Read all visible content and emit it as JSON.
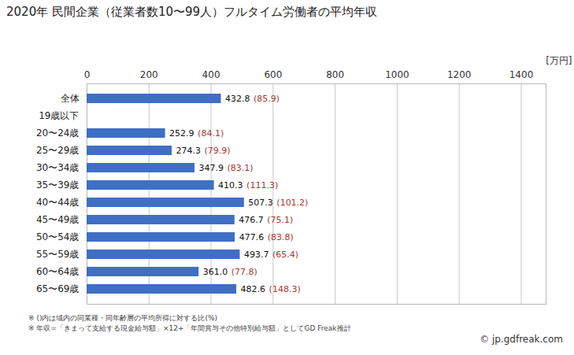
{
  "chart_data": {
    "type": "bar",
    "orientation": "horizontal",
    "title": "2020年 民間企業（従業者数10〜99人）フルタイム労働者の平均年収",
    "xlabel": "[万円]",
    "categories": [
      "全体",
      "19歳以下",
      "20〜24歳",
      "25〜29歳",
      "30〜34歳",
      "35〜39歳",
      "40〜44歳",
      "45〜49歳",
      "50〜54歳",
      "55〜59歳",
      "60〜64歳",
      "65〜69歳"
    ],
    "values": [
      432.8,
      null,
      252.9,
      274.3,
      347.9,
      410.3,
      507.3,
      476.7,
      477.6,
      493.7,
      361.0,
      482.6
    ],
    "value_labels": [
      "432.8",
      null,
      "252.9",
      "274.3",
      "347.9",
      "410.3",
      "507.3",
      "476.7",
      "477.6",
      "493.7",
      "361.0",
      "482.6"
    ],
    "ratio_labels": [
      "(85.9)",
      null,
      "(84.1)",
      "(79.9)",
      "(83.1)",
      "(111.3)",
      "(101.2)",
      "(75.1)",
      "(83.8)",
      "(65.4)",
      "(77.8)",
      "(148.3)"
    ],
    "color": "#3f6fc4",
    "ratio_color": "#a2392f",
    "xlim": [
      0,
      1480
    ],
    "xticks": [
      0,
      200,
      400,
      600,
      800,
      1000,
      1200,
      1400
    ],
    "grid": true,
    "data_labels": true,
    "notes": [
      "※ ()内は域内の同業種・同年齢層の平均所得に対する比(%)",
      "※ 年収=「きまって支給する現金給与額」×12+「年間賞与その他特別給与額」としてGD Freak推計"
    ],
    "source": "© jp.gdfreak.com"
  }
}
